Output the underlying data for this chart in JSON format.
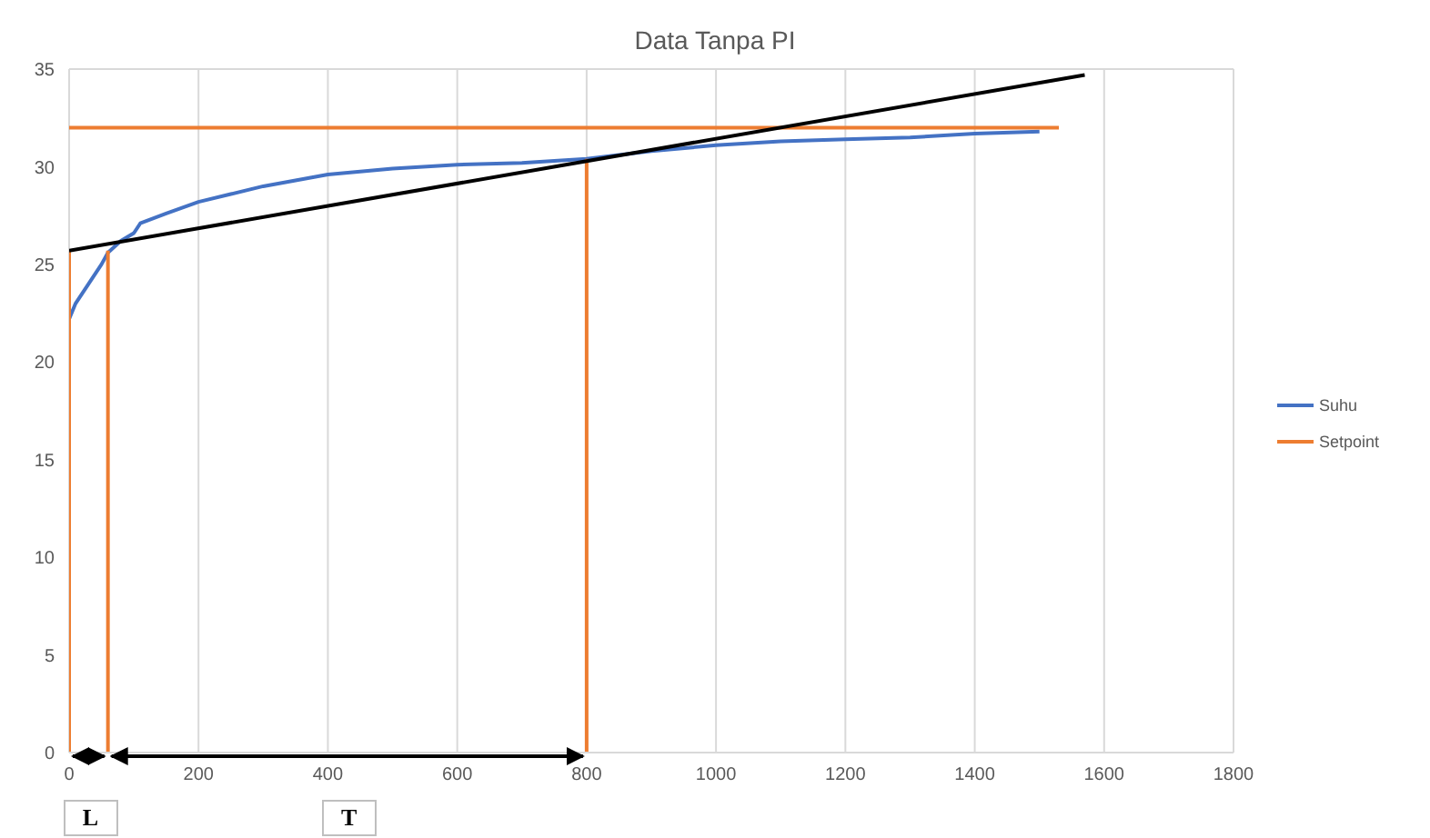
{
  "chart_data": {
    "type": "line",
    "title": "Data Tanpa PI",
    "xlim": [
      0,
      1800
    ],
    "xticks": [
      0,
      200,
      400,
      600,
      800,
      1000,
      1200,
      1400,
      1600,
      1800
    ],
    "ylim": [
      0,
      35
    ],
    "yticks": [
      0,
      5,
      10,
      15,
      20,
      25,
      30,
      35
    ],
    "grid": true,
    "legend": "right",
    "marker": "none",
    "line_style": "solid",
    "series": [
      {
        "name": "Suhu",
        "color": "#4472c4",
        "x": [
          0,
          10,
          30,
          50,
          60,
          80,
          100,
          110,
          150,
          200,
          250,
          300,
          350,
          400,
          500,
          600,
          700,
          800,
          900,
          1000,
          1100,
          1200,
          1300,
          1400,
          1500
        ],
        "values": [
          22.2,
          23,
          24,
          25,
          25.6,
          26.2,
          26.6,
          27.1,
          27.6,
          28.2,
          28.6,
          29,
          29.3,
          29.6,
          29.9,
          30.1,
          30.2,
          30.4,
          30.8,
          31.1,
          31.3,
          31.4,
          31.5,
          31.7,
          31.8
        ]
      },
      {
        "name": "Setpoint",
        "color": "#ed7d31",
        "x": [
          0,
          1530
        ],
        "values": [
          32,
          32
        ]
      },
      {
        "color": "#ed7d31",
        "x": [
          0,
          0
        ],
        "values": [
          0,
          25.7
        ]
      },
      {
        "color": "#ed7d31",
        "x": [
          60,
          60
        ],
        "values": [
          0,
          25.7
        ]
      },
      {
        "color": "#ed7d31",
        "x": [
          800,
          800
        ],
        "values": [
          0,
          30.4
        ]
      },
      {
        "color": "#000000",
        "x": [
          0,
          1570
        ],
        "values": [
          25.7,
          34.7
        ]
      }
    ],
    "annotations": [
      "L",
      "T"
    ]
  }
}
